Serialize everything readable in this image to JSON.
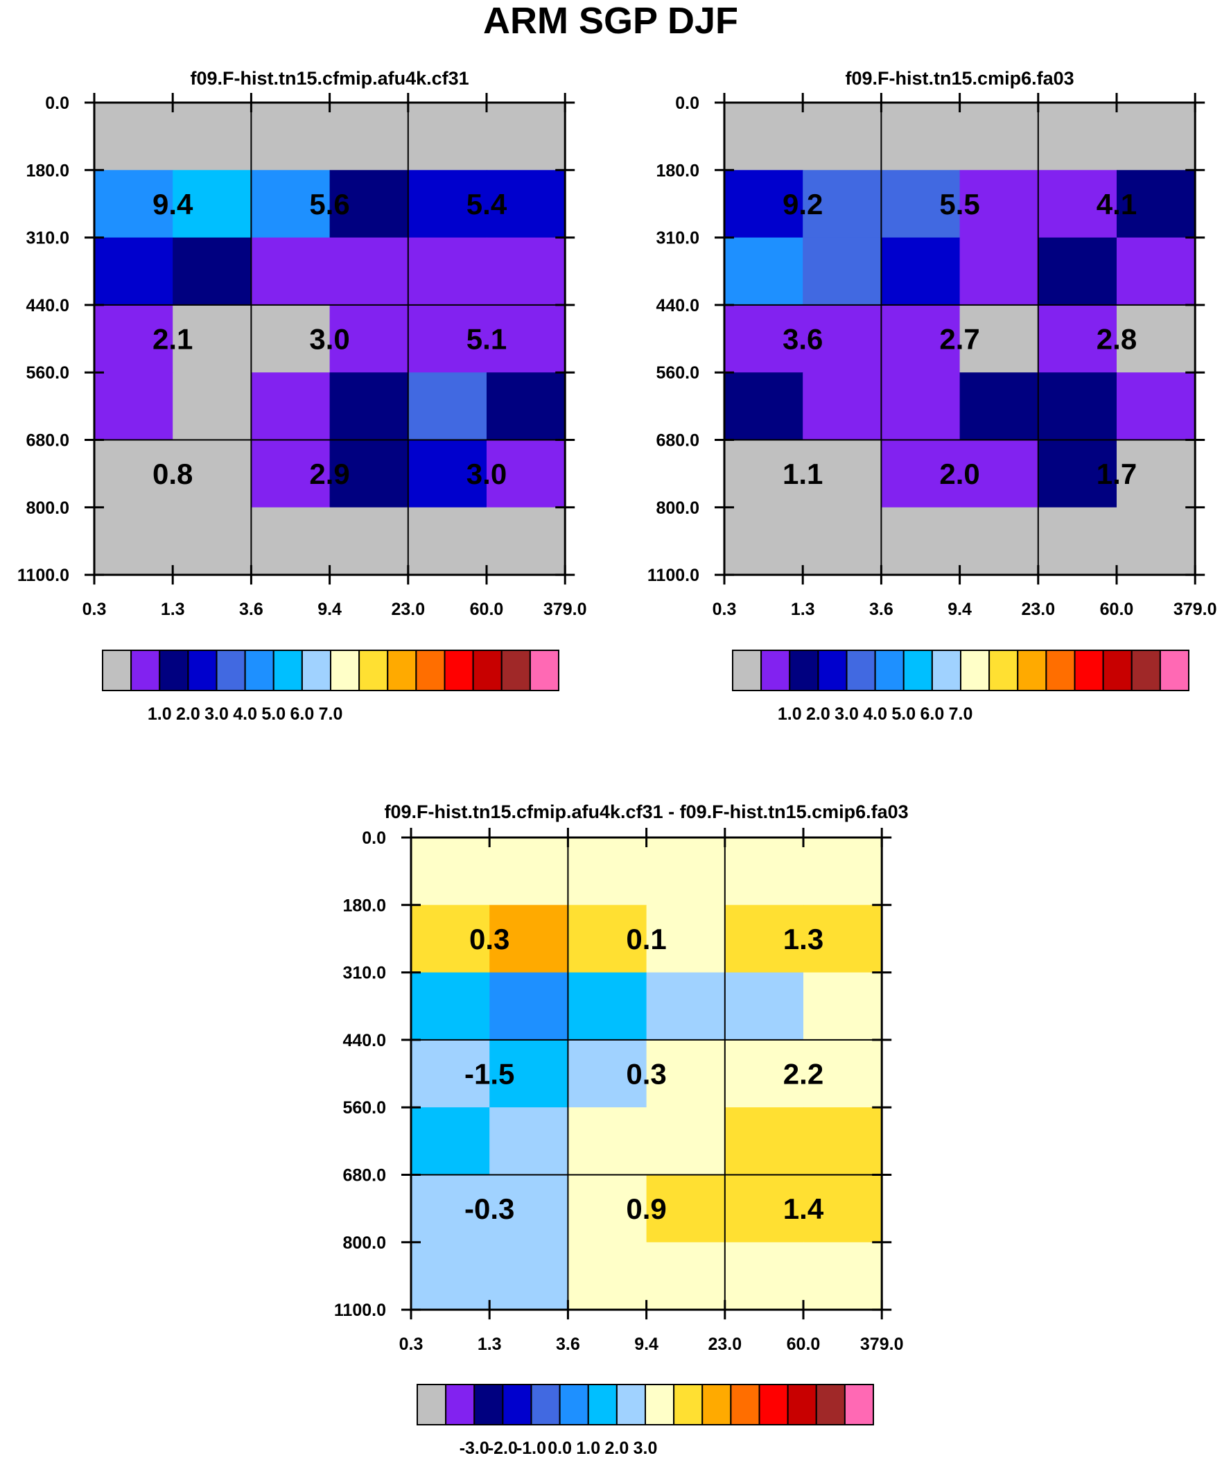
{
  "title": "ARM SGP DJF",
  "colors": {
    "palette": [
      "#c0c0c0",
      "#8222f0",
      "#000080",
      "#0000cd",
      "#4169e1",
      "#1e90ff",
      "#00bfff",
      "#a0d2ff",
      "#ffffc8",
      "#ffe032",
      "#ffaa00",
      "#ff6e00",
      "#ff0000",
      "#c80000",
      "#a02828",
      "#ff69b4"
    ],
    "grid_line": "#000000",
    "background": "#ffffff"
  },
  "chart_data": [
    {
      "type": "heatmap",
      "title": "f09.F-hist.tn15.cfmip.afu4k.cf31",
      "x_ticks": [
        "0.3",
        "1.3",
        "3.6",
        "9.4",
        "23.0",
        "60.0",
        "379.0"
      ],
      "y_ticks": [
        "0.0",
        "180.0",
        "310.0",
        "440.0",
        "560.0",
        "680.0",
        "800.0",
        "1100.0"
      ],
      "cell_colors": [
        [
          0,
          0,
          0,
          0,
          0,
          0
        ],
        [
          5,
          6,
          5,
          2,
          3,
          3
        ],
        [
          3,
          2,
          1,
          1,
          1,
          1
        ],
        [
          1,
          0,
          0,
          1,
          1,
          1
        ],
        [
          1,
          0,
          1,
          2,
          4,
          2
        ],
        [
          0,
          0,
          1,
          2,
          3,
          1
        ],
        [
          0,
          0,
          0,
          0,
          0,
          0
        ]
      ],
      "box_values": [
        [
          "9.4",
          "5.6",
          "5.4"
        ],
        [
          "2.1",
          "3.0",
          "5.1"
        ],
        [
          "0.8",
          "2.9",
          "3.0"
        ]
      ],
      "colorbar": {
        "labels": [
          "1.0",
          "2.0",
          "3.0",
          "4.0",
          "5.0",
          "6.0",
          "7.0"
        ]
      }
    },
    {
      "type": "heatmap",
      "title": "f09.F-hist.tn15.cmip6.fa03",
      "x_ticks": [
        "0.3",
        "1.3",
        "3.6",
        "9.4",
        "23.0",
        "60.0",
        "379.0"
      ],
      "y_ticks": [
        "0.0",
        "180.0",
        "310.0",
        "440.0",
        "560.0",
        "680.0",
        "800.0",
        "1100.0"
      ],
      "cell_colors": [
        [
          0,
          0,
          0,
          0,
          0,
          0
        ],
        [
          3,
          4,
          4,
          1,
          1,
          2
        ],
        [
          5,
          4,
          3,
          1,
          2,
          1
        ],
        [
          1,
          1,
          1,
          0,
          1,
          0
        ],
        [
          2,
          1,
          1,
          2,
          2,
          1
        ],
        [
          0,
          0,
          1,
          1,
          2,
          0
        ],
        [
          0,
          0,
          0,
          0,
          0,
          0
        ]
      ],
      "box_values": [
        [
          "9.2",
          "5.5",
          "4.1"
        ],
        [
          "3.6",
          "2.7",
          "2.8"
        ],
        [
          "1.1",
          "2.0",
          "1.7"
        ]
      ],
      "colorbar": {
        "labels": [
          "1.0",
          "2.0",
          "3.0",
          "4.0",
          "5.0",
          "6.0",
          "7.0"
        ]
      }
    },
    {
      "type": "heatmap",
      "title": "f09.F-hist.tn15.cfmip.afu4k.cf31 - f09.F-hist.tn15.cmip6.fa03",
      "x_ticks": [
        "0.3",
        "1.3",
        "3.6",
        "9.4",
        "23.0",
        "60.0",
        "379.0"
      ],
      "y_ticks": [
        "0.0",
        "180.0",
        "310.0",
        "440.0",
        "560.0",
        "680.0",
        "800.0",
        "1100.0"
      ],
      "cell_colors": [
        [
          8,
          8,
          8,
          8,
          8,
          8
        ],
        [
          9,
          10,
          9,
          8,
          9,
          9
        ],
        [
          6,
          5,
          6,
          7,
          7,
          8
        ],
        [
          7,
          6,
          7,
          8,
          8,
          8
        ],
        [
          6,
          7,
          8,
          8,
          9,
          9
        ],
        [
          7,
          7,
          8,
          9,
          9,
          9
        ],
        [
          7,
          7,
          8,
          8,
          8,
          8
        ]
      ],
      "box_values": [
        [
          "0.3",
          "0.1",
          "1.3"
        ],
        [
          "-1.5",
          "0.3",
          "2.2"
        ],
        [
          "-0.3",
          "0.9",
          "1.4"
        ]
      ],
      "colorbar": {
        "labels": [
          "-3.0",
          "-2.0",
          "-1.0",
          "0.0",
          "1.0",
          "2.0",
          "3.0"
        ]
      }
    }
  ]
}
